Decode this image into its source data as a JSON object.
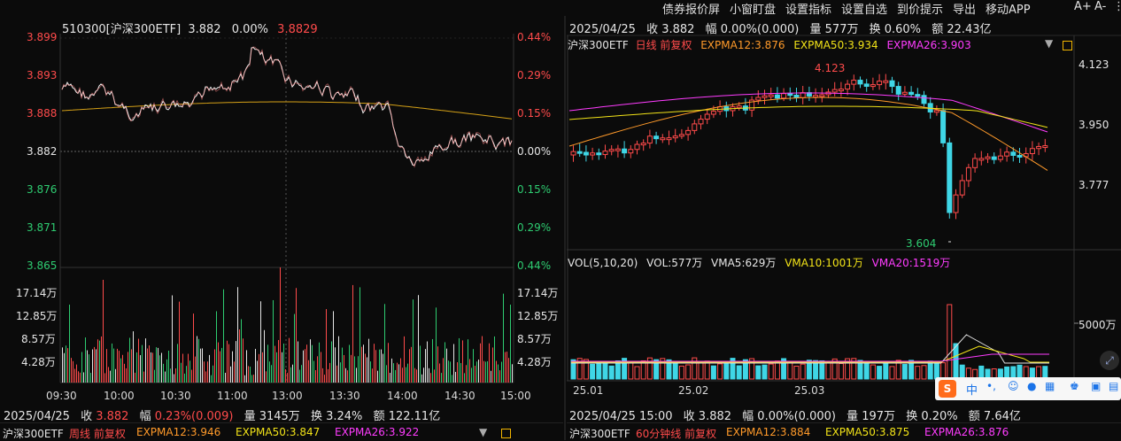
{
  "top_menu": [
    "债券报价屏",
    "小窗盯盘",
    "设置指标",
    "设置自选",
    "到价提示",
    "导出",
    "移动APP"
  ],
  "top_icons": {
    "font_size_up": "A+",
    "font_size_down": "A-",
    "more": "⋮"
  },
  "intraday": {
    "header": {
      "code": "510300[沪深300ETF]",
      "price": "3.882",
      "pct": "0.00%",
      "avg": "3.8829"
    },
    "price_axis": [
      "3.899",
      "3.893",
      "3.888",
      "3.882",
      "3.876",
      "3.871",
      "3.865"
    ],
    "pct_axis": [
      "0.44%",
      "0.29%",
      "0.15%",
      "0.00%",
      "0.15%",
      "0.29%",
      "0.44%"
    ],
    "volume_axis": [
      "17.14万",
      "12.85万",
      "8.57万",
      "4.28万"
    ],
    "time_axis": [
      "09:30",
      "10:00",
      "10:30",
      "11:00",
      "13:00",
      "13:30",
      "14:00",
      "14:30",
      "15:00"
    ],
    "footer": {
      "date": "2025/04/25",
      "close_label": "收",
      "close": "3.882",
      "range_label": "幅",
      "range": "0.23%(0.009)",
      "vol_label": "量",
      "vol": "3145万",
      "turn_label": "换",
      "turn": "3.24%",
      "amt_label": "额",
      "amt": "122.11亿"
    }
  },
  "daily": {
    "header": {
      "date": "2025/04/25",
      "close": "收 3.882",
      "range": "幅 0.00%(0.000)",
      "vol": "量 577万",
      "turn": "换 0.60%",
      "amt": "额 22.43亿"
    },
    "legend": {
      "name": "沪深300ETF",
      "period": "日线 前复权",
      "e12": "EXPMA12:3.876",
      "e50": "EXPMA50:3.934",
      "e26": "EXPMA26:3.903"
    },
    "price_axis": [
      "4.123",
      "3.950",
      "3.777"
    ],
    "hi_label": "4.123",
    "lo_label": "3.604",
    "vol_legend": {
      "name": "VOL(5,10,20)",
      "vol": "VOL:577万",
      "v5": "VMA5:629万",
      "v10": "VMA10:1001万",
      "v20": "VMA20:1519万"
    },
    "vol_axis": [
      "5000万"
    ],
    "date_axis": [
      "25.01",
      "25.02",
      "25.03"
    ],
    "footer": {
      "date": "2025/04/25 15:00",
      "close": "收 3.882",
      "range": "幅 0.00%(0.000)",
      "vol": "量 197万",
      "turn": "换 0.20%",
      "amt": "额 7.64亿"
    }
  },
  "bottom_left_legend": {
    "name": "沪深300ETF",
    "period": "周线 前复权",
    "e12": "EXPMA12:3.946",
    "e50": "EXPMA50:3.847",
    "e26": "EXPMA26:3.922"
  },
  "bottom_right_legend": {
    "name": "沪深300ETF",
    "period": "60分钟线 前复权",
    "e12": "EXPMA12:3.884",
    "e50": "EXPMA50:3.875",
    "e26": "EXPMA26:3.876"
  },
  "ime_bar": {
    "logo": "S",
    "lang": "中"
  },
  "colors": {
    "up": "#ff4b4b",
    "down": "#2ecc71",
    "cyan": "#3fd6e6",
    "ema12": "#ff9a2a",
    "ema50": "#f2e318",
    "ema26": "#ff3cff"
  }
}
